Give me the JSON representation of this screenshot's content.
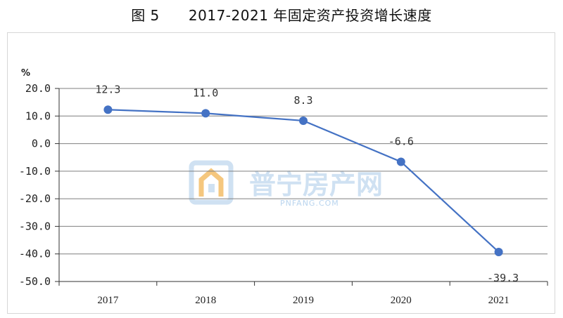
{
  "figure": {
    "title": "图 5      2017-2021 年固定资产投资增长速度"
  },
  "watermark": {
    "text": "普宁房产网",
    "subtext": "PNFANG.COM"
  },
  "colors": {
    "series": "#4472c4",
    "grid": "#7f7f7f",
    "watermark_orange": "#f5c77e",
    "watermark_blue": "#cfe1f2"
  },
  "chart_data": {
    "type": "line",
    "title": "2017-2021 年固定资产投资增长速度",
    "xlabel": "",
    "ylabel": "%",
    "categories": [
      "2017",
      "2018",
      "2019",
      "2020",
      "2021"
    ],
    "series": [
      {
        "values": [
          12.3,
          11.0,
          8.3,
          -6.6,
          -39.3
        ],
        "labels": [
          "12.3",
          "11.0",
          "8.3",
          "-6.6",
          "-39.3"
        ]
      }
    ],
    "ylim": [
      -50,
      20
    ],
    "yticks": [
      "20.0",
      "10.0",
      "0.0",
      "-10.0",
      "-20.0",
      "-30.0",
      "-40.0",
      "-50.0"
    ],
    "ytick_values": [
      20,
      10,
      0,
      -10,
      -20,
      -30,
      -40,
      -50
    ],
    "grid": true,
    "legend": "none"
  }
}
